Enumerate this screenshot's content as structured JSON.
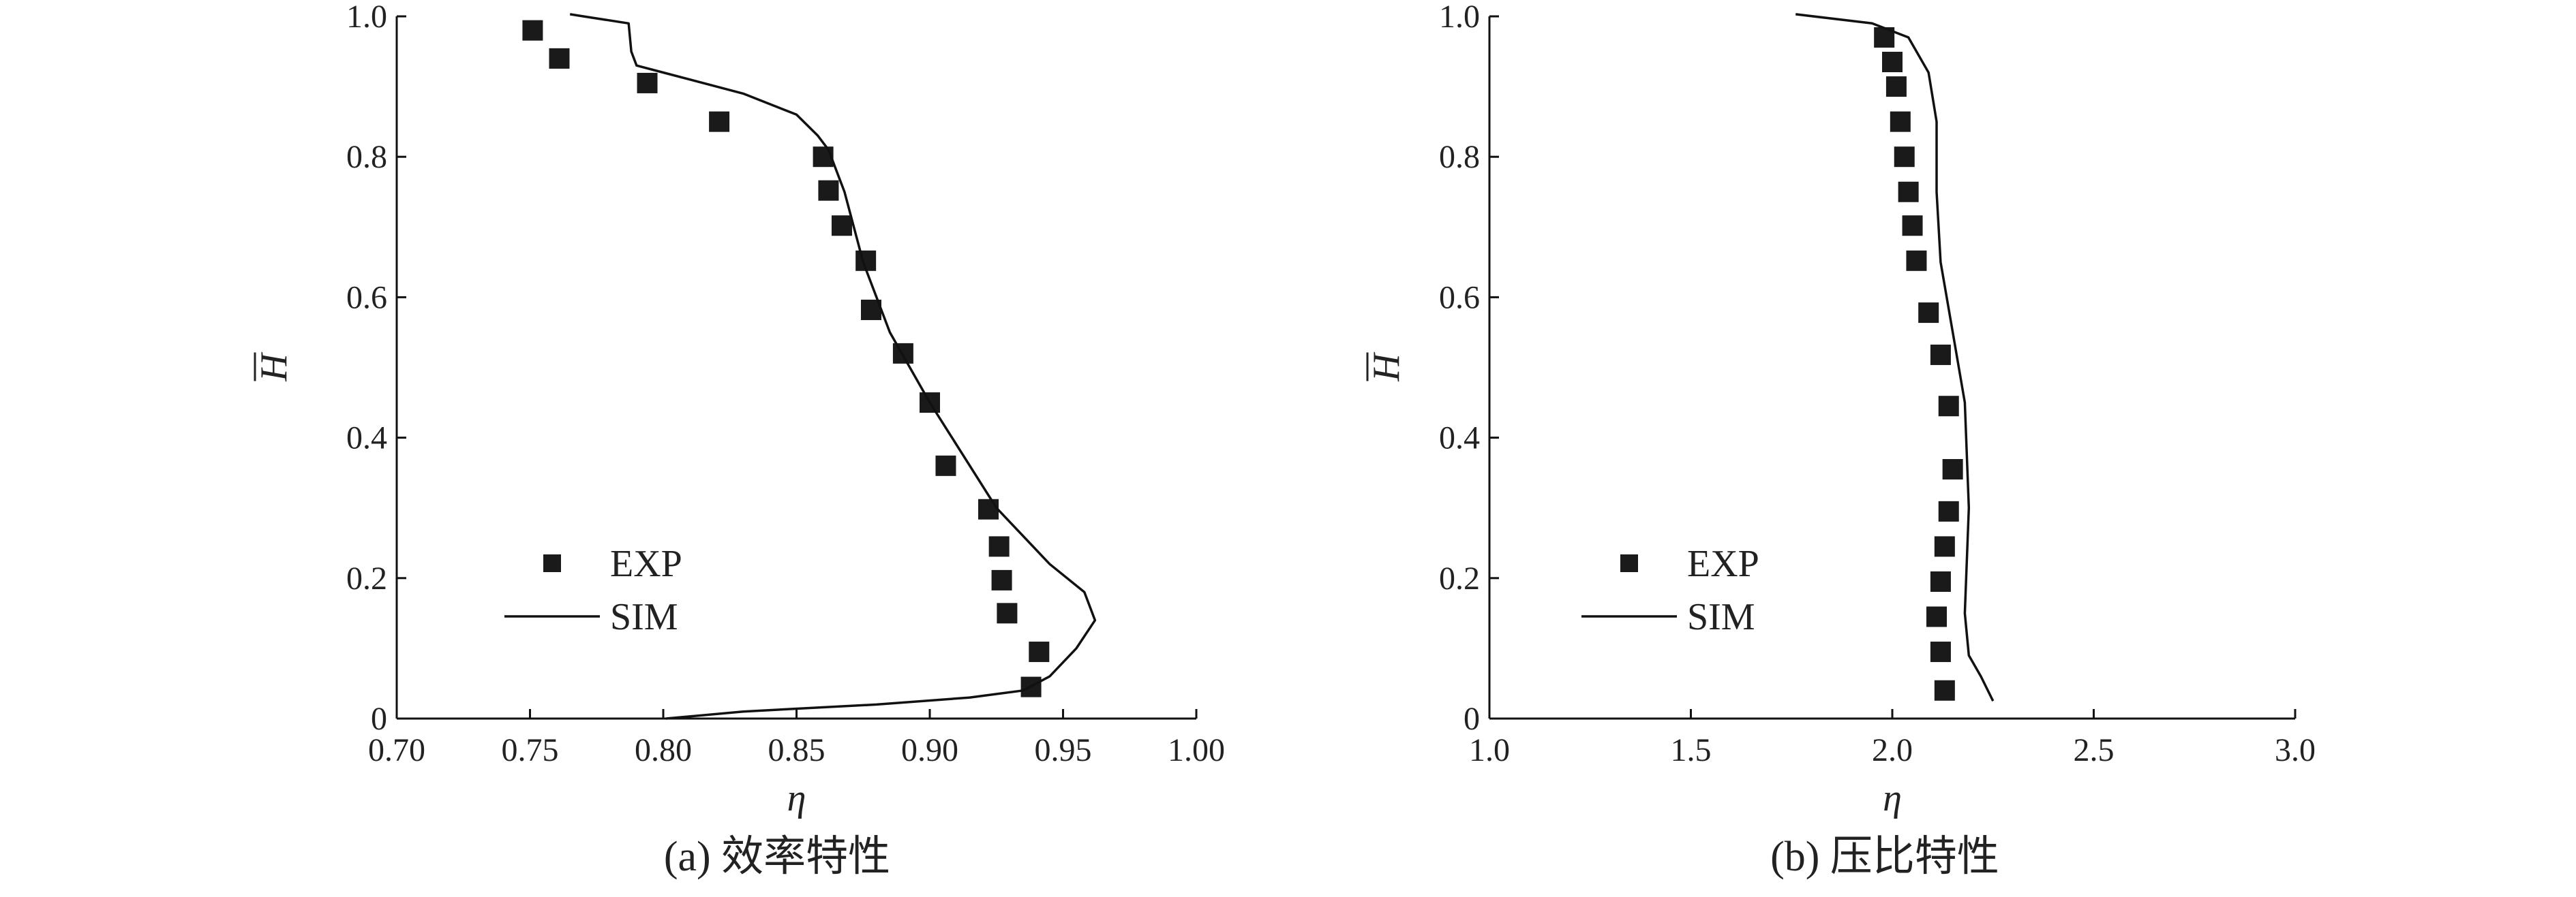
{
  "chart_data": [
    {
      "type": "scatter",
      "caption": "(a) 效率特性",
      "xlabel": "η",
      "ylabel": "H",
      "ylabel_overline": true,
      "xlim": [
        0.7,
        1.0
      ],
      "ylim": [
        0,
        1.0
      ],
      "xticks": [
        0.7,
        0.75,
        0.8,
        0.85,
        0.9,
        0.95,
        1.0
      ],
      "xtick_labels": [
        "0.70",
        "0.75",
        "0.80",
        "0.85",
        "0.90",
        "0.95",
        "1.00"
      ],
      "yticks": [
        0,
        0.2,
        0.4,
        0.6,
        0.8,
        1.0
      ],
      "ytick_labels": [
        "0",
        "0.2",
        "0.4",
        "0.6",
        "0.8",
        "1.0"
      ],
      "legend": {
        "position": "lower-left",
        "entries": [
          "EXP",
          "SIM"
        ]
      },
      "series": [
        {
          "name": "EXP",
          "kind": "marker",
          "points": [
            [
              0.751,
              0.98
            ],
            [
              0.761,
              0.94
            ],
            [
              0.794,
              0.905
            ],
            [
              0.821,
              0.85
            ],
            [
              0.86,
              0.8
            ],
            [
              0.862,
              0.752
            ],
            [
              0.867,
              0.702
            ],
            [
              0.876,
              0.652
            ],
            [
              0.878,
              0.582
            ],
            [
              0.89,
              0.52
            ],
            [
              0.9,
              0.45
            ],
            [
              0.906,
              0.36
            ],
            [
              0.922,
              0.298
            ],
            [
              0.926,
              0.245
            ],
            [
              0.927,
              0.197
            ],
            [
              0.929,
              0.15
            ],
            [
              0.941,
              0.095
            ],
            [
              0.938,
              0.045
            ]
          ]
        },
        {
          "name": "SIM",
          "kind": "line",
          "points": [
            [
              0.801,
              0.0
            ],
            [
              0.83,
              0.01
            ],
            [
              0.88,
              0.02
            ],
            [
              0.915,
              0.03
            ],
            [
              0.935,
              0.04
            ],
            [
              0.945,
              0.06
            ],
            [
              0.955,
              0.1
            ],
            [
              0.962,
              0.14
            ],
            [
              0.958,
              0.18
            ],
            [
              0.945,
              0.22
            ],
            [
              0.925,
              0.3
            ],
            [
              0.9,
              0.45
            ],
            [
              0.885,
              0.55
            ],
            [
              0.875,
              0.65
            ],
            [
              0.868,
              0.75
            ],
            [
              0.862,
              0.81
            ],
            [
              0.858,
              0.83
            ],
            [
              0.85,
              0.86
            ],
            [
              0.83,
              0.89
            ],
            [
              0.8,
              0.92
            ],
            [
              0.79,
              0.93
            ],
            [
              0.788,
              0.95
            ],
            [
              0.787,
              0.99
            ],
            [
              0.77,
              1.0
            ],
            [
              0.765,
              1.003
            ]
          ]
        }
      ]
    },
    {
      "type": "scatter",
      "caption": "(b) 压比特性",
      "xlabel": "η",
      "ylabel": "H",
      "ylabel_overline": true,
      "xlim": [
        1.0,
        3.0
      ],
      "ylim": [
        0,
        1.0
      ],
      "xticks": [
        1.0,
        1.5,
        2.0,
        2.5,
        3.0
      ],
      "xtick_labels": [
        "1.0",
        "1.5",
        "2.0",
        "2.5",
        "3.0"
      ],
      "yticks": [
        0,
        0.2,
        0.4,
        0.6,
        0.8,
        1.0
      ],
      "ytick_labels": [
        "0",
        "0.2",
        "0.4",
        "0.6",
        "0.8",
        "1.0"
      ],
      "legend": {
        "position": "lower-left",
        "entries": [
          "EXP",
          "SIM"
        ]
      },
      "series": [
        {
          "name": "EXP",
          "kind": "marker",
          "points": [
            [
              1.98,
              0.97
            ],
            [
              2.0,
              0.935
            ],
            [
              2.01,
              0.9
            ],
            [
              2.02,
              0.85
            ],
            [
              2.03,
              0.8
            ],
            [
              2.04,
              0.75
            ],
            [
              2.05,
              0.702
            ],
            [
              2.06,
              0.652
            ],
            [
              2.09,
              0.578
            ],
            [
              2.12,
              0.518
            ],
            [
              2.14,
              0.445
            ],
            [
              2.15,
              0.355
            ],
            [
              2.14,
              0.295
            ],
            [
              2.13,
              0.245
            ],
            [
              2.12,
              0.195
            ],
            [
              2.11,
              0.145
            ],
            [
              2.12,
              0.095
            ],
            [
              2.13,
              0.04
            ]
          ]
        },
        {
          "name": "SIM",
          "kind": "line",
          "points": [
            [
              2.25,
              0.025
            ],
            [
              2.22,
              0.06
            ],
            [
              2.19,
              0.09
            ],
            [
              2.18,
              0.15
            ],
            [
              2.19,
              0.3
            ],
            [
              2.18,
              0.45
            ],
            [
              2.15,
              0.55
            ],
            [
              2.12,
              0.65
            ],
            [
              2.11,
              0.75
            ],
            [
              2.11,
              0.85
            ],
            [
              2.09,
              0.92
            ],
            [
              2.04,
              0.97
            ],
            [
              1.95,
              0.99
            ],
            [
              1.76,
              1.003
            ]
          ]
        }
      ]
    }
  ]
}
